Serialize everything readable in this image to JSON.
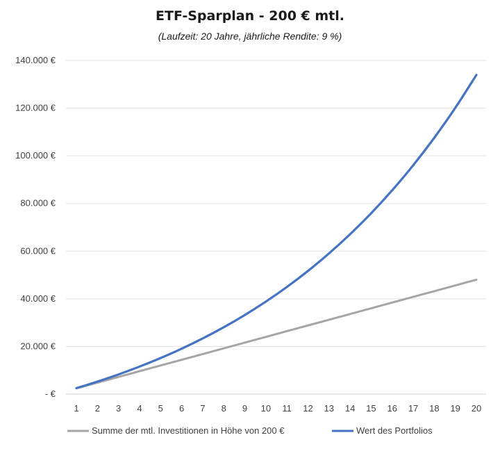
{
  "chart_data": {
    "type": "line",
    "title": "ETF-Sparplan - 200 € mtl.",
    "subtitle": "(Laufzeit: 20 Jahre, jährliche Rendite: 9 %)",
    "x": [
      1,
      2,
      3,
      4,
      5,
      6,
      7,
      8,
      9,
      10,
      11,
      12,
      13,
      14,
      15,
      16,
      17,
      18,
      19,
      20
    ],
    "x_tick_labels": [
      "1",
      "2",
      "3",
      "4",
      "5",
      "6",
      "7",
      "8",
      "9",
      "10",
      "11",
      "12",
      "13",
      "14",
      "15",
      "16",
      "17",
      "18",
      "19",
      "20"
    ],
    "y_tick_labels": [
      "-  €",
      "20.000 €",
      "40.000 €",
      "60.000 €",
      "80.000 €",
      "100.000 €",
      "120.000 €",
      "140.000 €"
    ],
    "y_ticks": [
      0,
      20000,
      40000,
      60000,
      80000,
      100000,
      120000,
      140000
    ],
    "ylim": [
      0,
      140000
    ],
    "grid": "horizontal",
    "legend": "bottom",
    "series": [
      {
        "name": "Summe der mtl. Investitionen in Höhe von 200 €",
        "color": "#a5a5a5",
        "values": [
          2400,
          4800,
          7200,
          9600,
          12000,
          14400,
          16800,
          19200,
          21600,
          24000,
          26400,
          28800,
          31200,
          33600,
          36000,
          38400,
          40800,
          43200,
          45600,
          48000
        ]
      },
      {
        "name": "Wert des Portfolios",
        "color": "#4472c4",
        "values": [
          2509,
          5254,
          8255,
          11537,
          15127,
          19054,
          23349,
          28048,
          33186,
          38807,
          44955,
          51680,
          59036,
          67082,
          75882,
          85508,
          96037,
          107554,
          120151,
          133930
        ]
      }
    ]
  }
}
